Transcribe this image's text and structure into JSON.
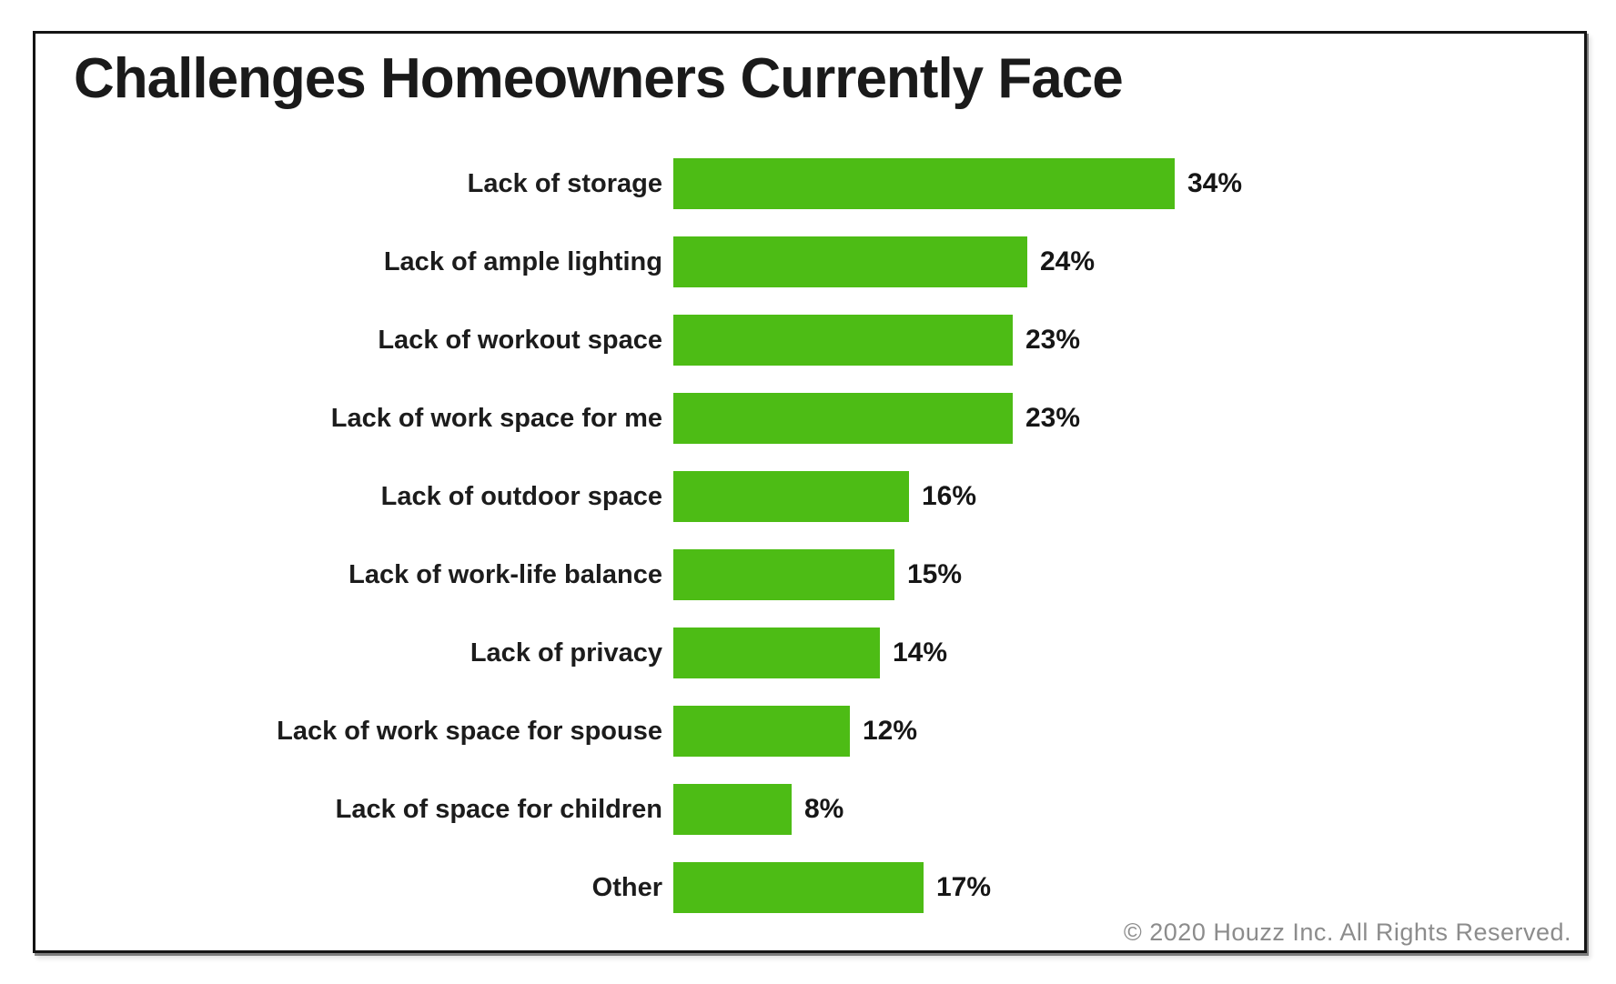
{
  "header": {
    "title": "Challenges Homeowners Currently Face"
  },
  "chart_data": {
    "type": "bar",
    "orientation": "horizontal",
    "title": "Challenges Homeowners Currently Face",
    "categories": [
      "Lack of storage",
      "Lack of ample lighting",
      "Lack of workout space",
      "Lack of work space for me",
      "Lack of outdoor space",
      "Lack of work-life balance",
      "Lack of privacy",
      "Lack of work space for spouse",
      "Lack of space for children",
      "Other"
    ],
    "values": [
      34,
      24,
      23,
      23,
      16,
      15,
      14,
      12,
      8,
      17
    ],
    "value_labels": [
      "34%",
      "24%",
      "23%",
      "23%",
      "16%",
      "15%",
      "14%",
      "12%",
      "8%",
      "17%"
    ],
    "unit": "%",
    "xlabel": "",
    "ylabel": "",
    "axes_shown": false,
    "grid": false,
    "legend": "none",
    "value_label_position": "end-of-bar",
    "bar_color": "#4DBC15",
    "label_color": "#1c1c1c",
    "title_color": "#1a1a1a"
  },
  "footer": {
    "copyright": "© 2020 Houzz Inc. All Rights Reserved."
  }
}
